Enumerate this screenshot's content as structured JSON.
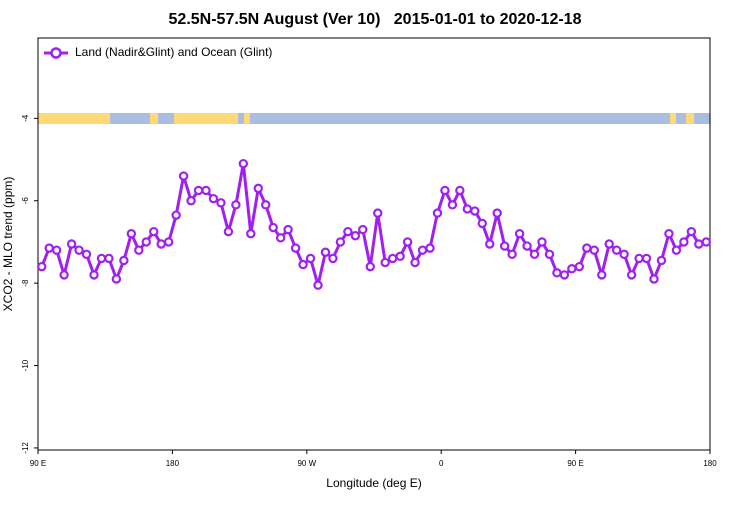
{
  "chart_data": {
    "type": "line",
    "title": "52.5N-57.5N August (Ver 10)   2015-01-01 to 2020-12-18",
    "xlabel": "Longitude (deg E)",
    "ylabel": "XCO2 - MLO trend (ppm)",
    "xlim": [
      90,
      540
    ],
    "ylim": [
      -12.05,
      -2.05
    ],
    "xticks": [
      {
        "value": 90,
        "label": "90 E"
      },
      {
        "value": 180,
        "label": "180"
      },
      {
        "value": 270,
        "label": "90 W"
      },
      {
        "value": 360,
        "label": "0"
      },
      {
        "value": 450,
        "label": "90 E"
      },
      {
        "value": 540,
        "label": "180"
      }
    ],
    "yticks": [
      -12,
      -10,
      -8,
      -6,
      -4
    ],
    "legend": "upper left",
    "x": [
      92.5,
      97.5,
      102.5,
      107.5,
      112.5,
      117.5,
      122.5,
      127.5,
      132.5,
      137.5,
      142.5,
      147.5,
      152.5,
      157.5,
      162.5,
      167.5,
      172.5,
      177.5,
      182.5,
      187.5,
      192.5,
      197.5,
      202.5,
      207.5,
      212.5,
      217.5,
      222.5,
      227.5,
      232.5,
      237.5,
      242.5,
      247.5,
      252.5,
      257.5,
      262.5,
      267.5,
      272.5,
      277.5,
      282.5,
      287.5,
      292.5,
      297.5,
      302.5,
      307.5,
      312.5,
      317.5,
      322.5,
      327.5,
      332.5,
      337.5,
      342.5,
      347.5,
      352.5,
      357.5,
      362.5,
      367.5,
      372.5,
      377.5,
      382.5,
      387.5,
      392.5,
      397.5,
      402.5,
      407.5,
      412.5,
      417.5,
      422.5,
      427.5,
      432.5,
      437.5,
      442.5,
      447.5,
      452.5,
      457.5,
      462.5,
      467.5,
      472.5,
      477.5,
      482.5,
      487.5,
      492.5,
      497.5,
      502.5,
      507.5,
      512.5,
      517.5,
      522.5,
      527.5,
      532.5,
      537.5
    ],
    "series": [
      {
        "name": "Land (Nadir&Glint) and Ocean (Glint)",
        "color": "#a020f0",
        "values": [
          -7.6,
          -7.15,
          -7.2,
          -7.8,
          -7.05,
          -7.2,
          -7.3,
          -7.8,
          -7.4,
          -7.4,
          -7.9,
          -7.45,
          -6.8,
          -7.2,
          -7.0,
          -6.75,
          -7.05,
          -7.0,
          -6.35,
          -5.4,
          -6.0,
          -5.75,
          -5.75,
          -5.95,
          -6.05,
          -6.75,
          -6.1,
          -5.1,
          -6.8,
          -5.7,
          -6.1,
          -6.65,
          -6.9,
          -6.7,
          -7.15,
          -7.55,
          -7.4,
          -8.05,
          -7.25,
          -7.4,
          -7.0,
          -6.75,
          -6.85,
          -6.7,
          -7.6,
          -6.3,
          -7.5,
          -7.4,
          -7.35,
          -7.0,
          -7.5,
          -7.2,
          -7.15,
          -6.3,
          -5.75,
          -6.1,
          -5.75,
          -6.2,
          -6.25,
          -6.55,
          -7.05,
          -6.3,
          -7.1,
          -7.3,
          -6.8,
          -7.1,
          -7.3,
          -7.0,
          -7.3,
          -7.75,
          -7.8,
          -7.65,
          -7.6,
          -7.15,
          -7.2,
          -7.8,
          -7.05,
          -7.2,
          -7.3,
          -7.8,
          -7.4,
          -7.4,
          -7.9,
          -7.45,
          -6.8,
          -7.2,
          -7.0,
          -6.75,
          -7.05,
          -7.0
        ]
      }
    ]
  }
}
